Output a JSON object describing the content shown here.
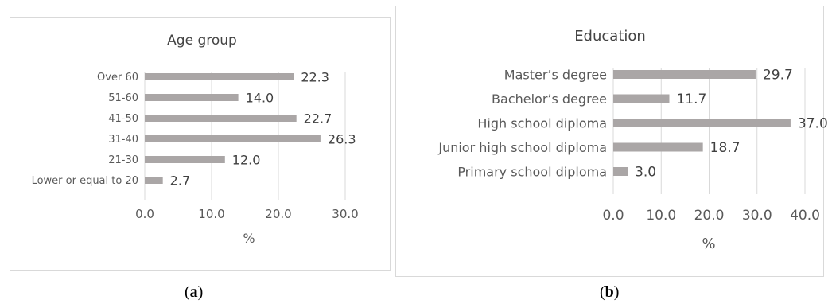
{
  "chart_data": [
    {
      "type": "bar",
      "orientation": "horizontal",
      "title": "Age group",
      "xlabel": "%",
      "categories": [
        "Over 60",
        "51-60",
        "41-50",
        "31-40",
        "21-30",
        "Lower or equal to 20"
      ],
      "values": [
        22.3,
        14.0,
        22.7,
        26.3,
        12.0,
        2.7
      ],
      "value_labels": [
        "22.3",
        "14.0",
        "22.7",
        "26.3",
        "12.0",
        "2.7"
      ],
      "xlim": [
        0,
        30
      ],
      "xticks": [
        "0.0",
        "10.0",
        "20.0",
        "30.0"
      ],
      "bar_color": "#aaa6a6",
      "grid": true
    },
    {
      "type": "bar",
      "orientation": "horizontal",
      "title": "Education",
      "xlabel": "%",
      "categories": [
        "Master’s degree",
        "Bachelor’s degree",
        "High school diploma",
        "Junior high school diploma",
        "Primary school diploma"
      ],
      "values": [
        29.7,
        11.7,
        37.0,
        18.7,
        3.0
      ],
      "value_labels": [
        "29.7",
        "11.7",
        "37.0",
        "18.7",
        "3.0"
      ],
      "xlim": [
        0,
        40
      ],
      "xticks": [
        "0.0",
        "10.0",
        "20.0",
        "30.0",
        "40.0"
      ],
      "bar_color": "#aaa6a6",
      "grid": true
    }
  ],
  "captions": {
    "a": "(a)",
    "b": "(b)"
  }
}
